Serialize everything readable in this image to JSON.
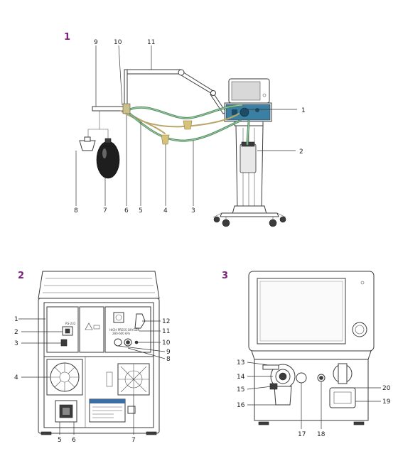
{
  "figure": {
    "panel_labels": [
      "1",
      "2",
      "3"
    ],
    "panel1_callouts": [
      "9",
      "10",
      "11",
      "1",
      "2",
      "8",
      "7",
      "6",
      "5",
      "4",
      "3"
    ],
    "panel2_callouts": [
      "1",
      "2",
      "3",
      "4",
      "5",
      "6",
      "7",
      "8",
      "9",
      "10",
      "11",
      "12"
    ],
    "panel3_callouts": [
      "13",
      "14",
      "15",
      "16",
      "17",
      "18",
      "19",
      "20"
    ]
  },
  "colors": {
    "tube_green": "#4f8a5c",
    "tube_yellow": "#b8a66a",
    "screen_blue": "#3b7fa3",
    "panel_number": "#7a1f7a"
  }
}
